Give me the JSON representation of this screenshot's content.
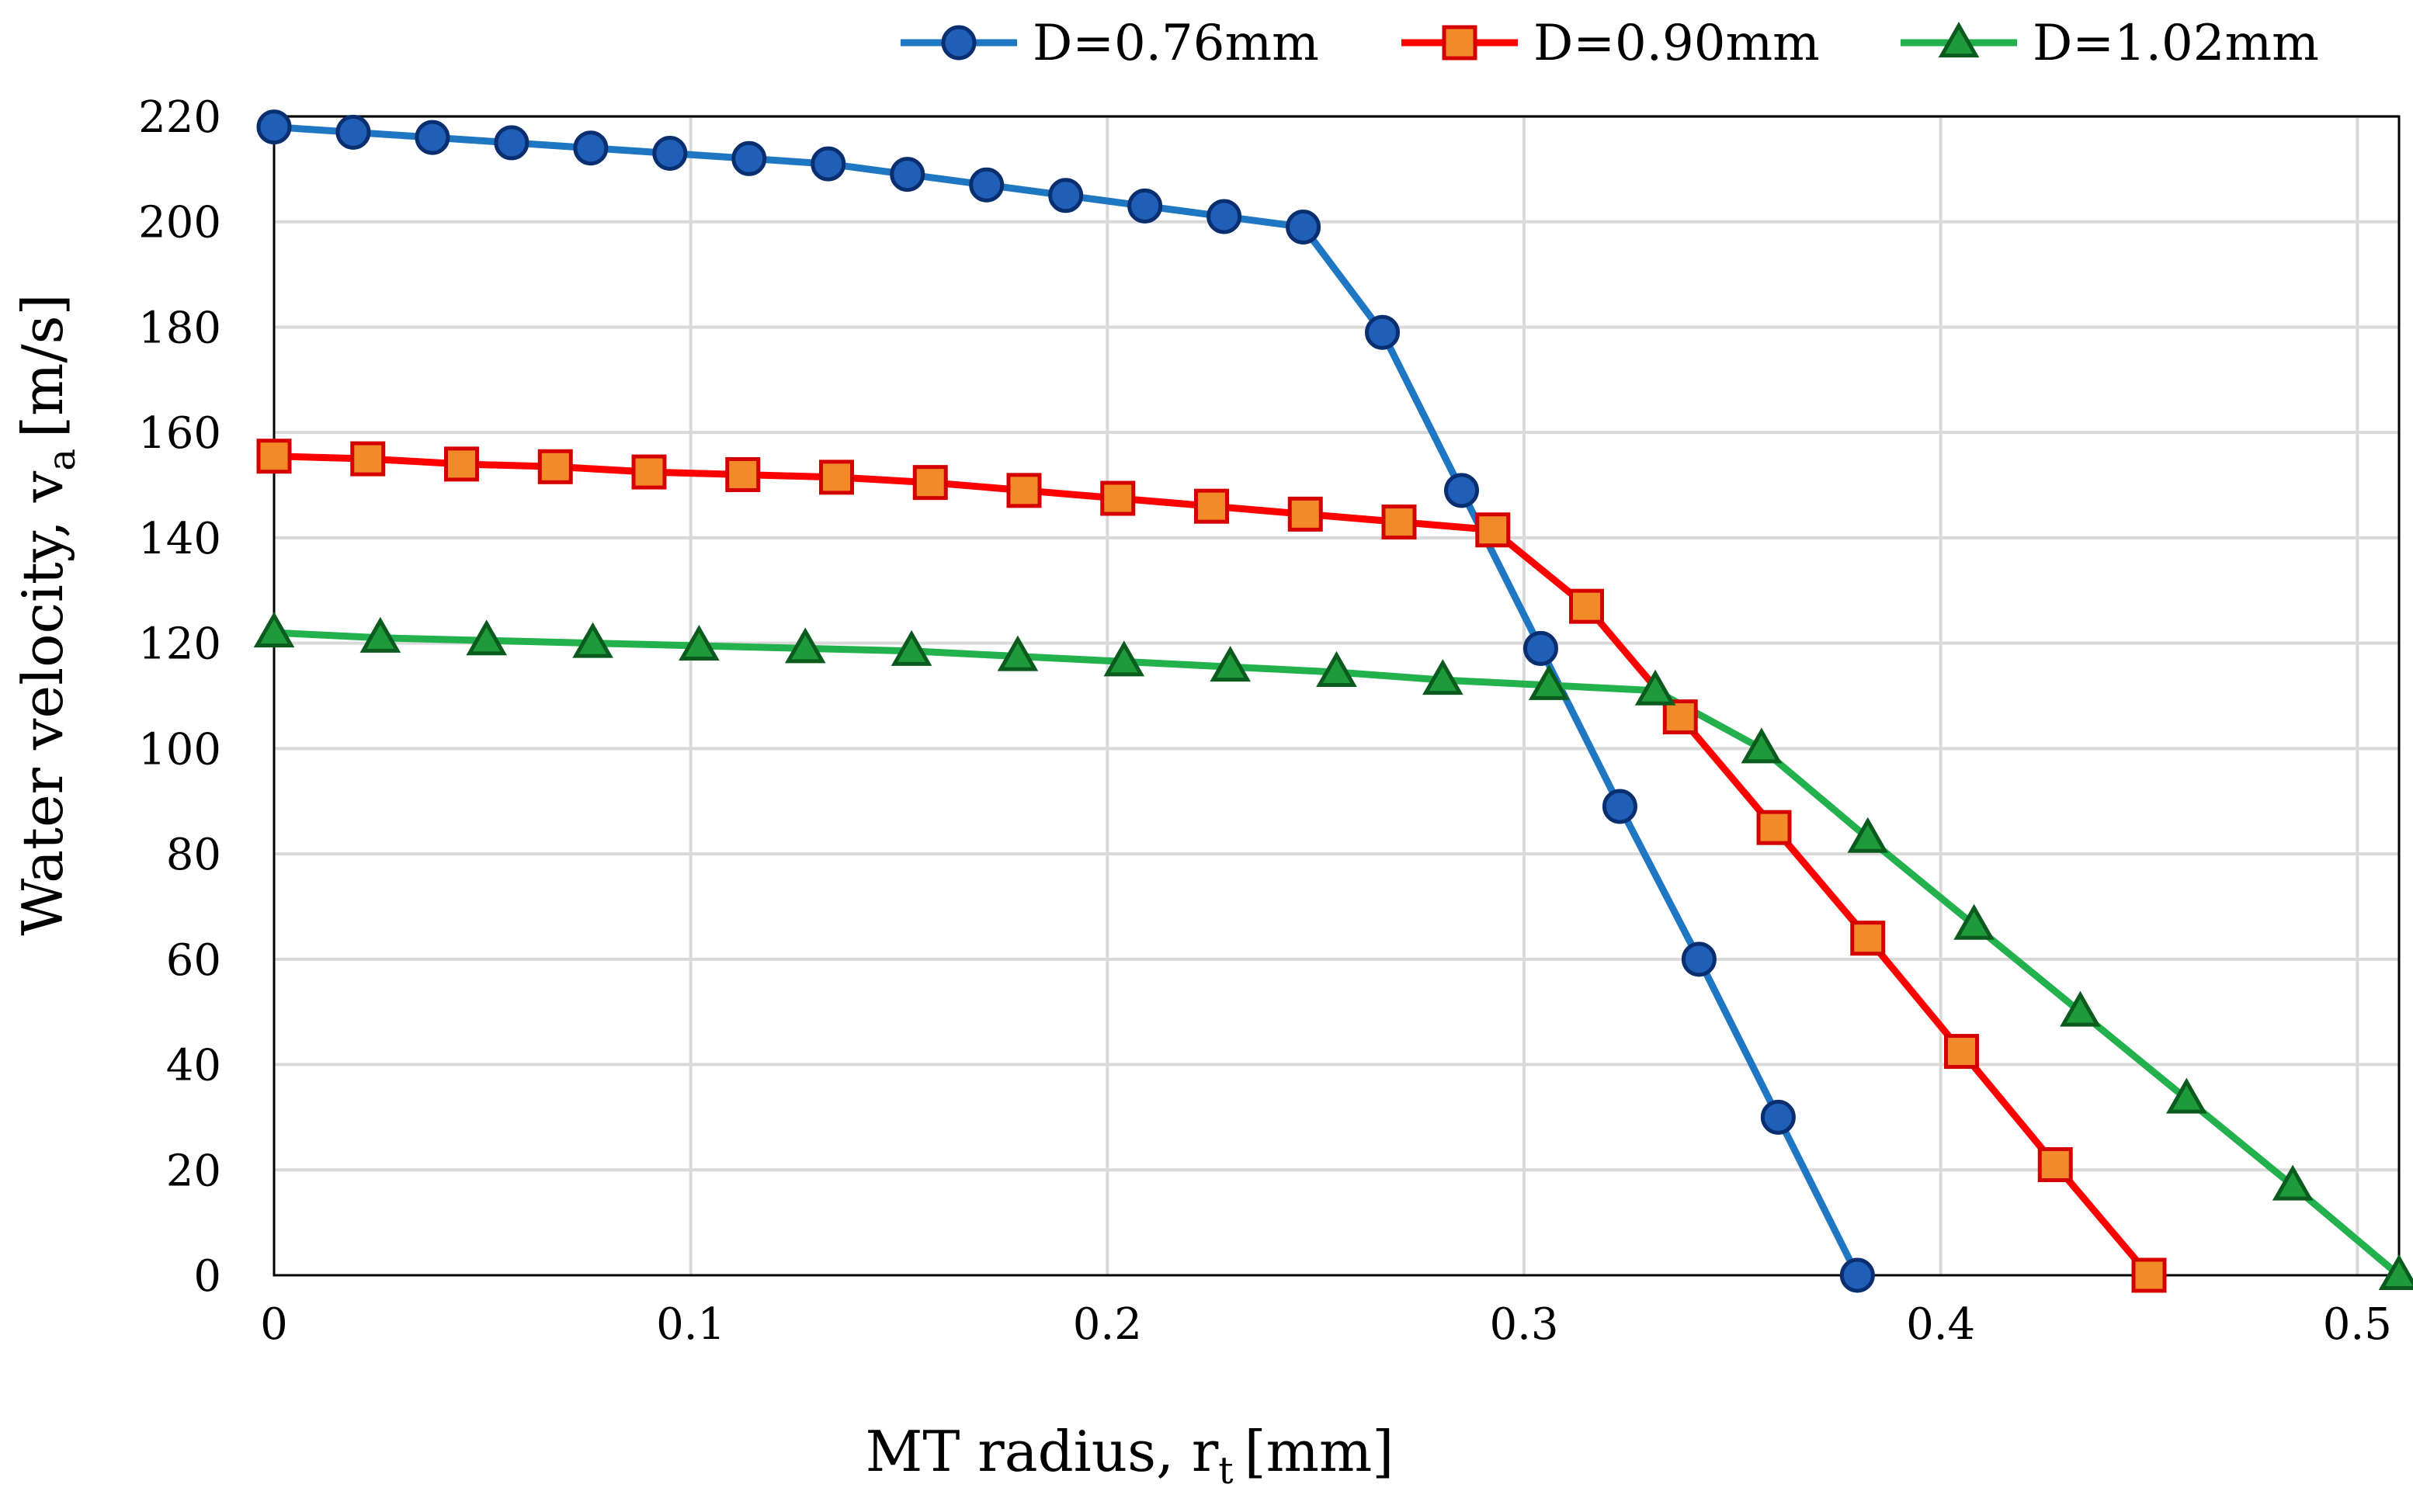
{
  "chart_data": {
    "type": "line",
    "title": "",
    "xlabel": {
      "main": "MT radius, r",
      "sub": "t",
      "unit": "[mm]"
    },
    "ylabel": {
      "main": "Water velocity, v",
      "sub": "a",
      "unit": "[m/s]"
    },
    "xlim": [
      0,
      0.51
    ],
    "ylim": [
      0,
      220
    ],
    "x_ticks": [
      0,
      0.1,
      0.2,
      0.3,
      0.4,
      0.5
    ],
    "x_tick_labels": [
      "0",
      "0.1",
      "0.2",
      "0.3",
      "0.4",
      "0.5"
    ],
    "y_ticks": [
      0,
      20,
      40,
      60,
      80,
      100,
      120,
      140,
      160,
      180,
      200,
      220
    ],
    "y_tick_labels": [
      "0",
      "20",
      "40",
      "60",
      "80",
      "100",
      "120",
      "140",
      "160",
      "180",
      "200",
      "220"
    ],
    "grid": true,
    "legend_position": "top",
    "series": [
      {
        "name": "D=0.76mm",
        "color": "#1f77c4",
        "marker": "circle",
        "marker_fill": "#1f5fb8",
        "marker_stroke": "#0a2f70",
        "x": [
          0,
          0.019,
          0.038,
          0.057,
          0.076,
          0.095,
          0.114,
          0.133,
          0.152,
          0.171,
          0.19,
          0.209,
          0.228,
          0.247,
          0.266,
          0.285,
          0.304,
          0.323,
          0.342,
          0.361,
          0.38
        ],
        "y": [
          218,
          217,
          216,
          215,
          214,
          213,
          212,
          211,
          209,
          207,
          205,
          203,
          201,
          199,
          179,
          149,
          119,
          89,
          60,
          30,
          0
        ]
      },
      {
        "name": "D=0.90mm",
        "color": "#ff0000",
        "marker": "square",
        "marker_fill": "#f28a2a",
        "marker_stroke": "#d40000",
        "x": [
          0,
          0.0225,
          0.045,
          0.0675,
          0.09,
          0.1125,
          0.135,
          0.1575,
          0.18,
          0.2025,
          0.225,
          0.2475,
          0.27,
          0.2925,
          0.315,
          0.3375,
          0.36,
          0.3825,
          0.405,
          0.4275,
          0.45
        ],
        "y": [
          155.5,
          155,
          154,
          153.5,
          152.5,
          152,
          151.5,
          150.5,
          149,
          147.5,
          146,
          144.5,
          143,
          141.5,
          127,
          106,
          85,
          64,
          42.5,
          21,
          0
        ]
      },
      {
        "name": "D=1.02mm",
        "color": "#22b14c",
        "marker": "triangle",
        "marker_fill": "#1e9a3a",
        "marker_stroke": "#0b5a1e",
        "x": [
          0,
          0.0255,
          0.051,
          0.0765,
          0.102,
          0.1275,
          0.153,
          0.1785,
          0.204,
          0.2295,
          0.255,
          0.2805,
          0.306,
          0.3315,
          0.357,
          0.3825,
          0.408,
          0.4335,
          0.459,
          0.4845,
          0.51
        ],
        "y": [
          122,
          121,
          120.5,
          120,
          119.5,
          119,
          118.5,
          117.5,
          116.5,
          115.5,
          114.5,
          113,
          112,
          111,
          100,
          83,
          66.5,
          50,
          33.5,
          17,
          0
        ]
      }
    ]
  }
}
